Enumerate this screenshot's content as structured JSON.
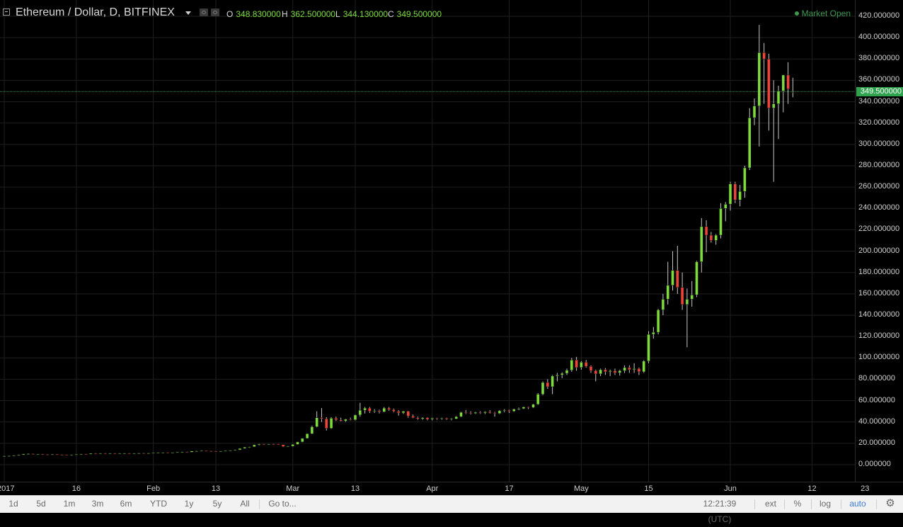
{
  "header": {
    "symbol_title": "Ethereum / Dollar, D, BITFINEX",
    "ohlc": [
      {
        "key": "O",
        "value": "348.830000"
      },
      {
        "key": "H",
        "value": "362.500000"
      },
      {
        "key": "L",
        "value": "344.130000"
      },
      {
        "key": "C",
        "value": "349.500000"
      }
    ],
    "market_status": "Market Open"
  },
  "last_price_label": "349.500000",
  "colors": {
    "up": "#7ddb3c",
    "down": "#f0433b",
    "grid": "#1f1f1f",
    "last_price": "#2fa34e"
  },
  "price_axis": {
    "ticks": [
      "420.000000",
      "400.000000",
      "380.000000",
      "360.000000",
      "340.000000",
      "320.000000",
      "300.000000",
      "280.000000",
      "260.000000",
      "240.000000",
      "220.000000",
      "200.000000",
      "180.000000",
      "160.000000",
      "140.000000",
      "120.000000",
      "100.000000",
      "80.000000",
      "60.000000",
      "40.000000",
      "20.000000",
      "0.000000"
    ]
  },
  "time_axis": {
    "labels": [
      "2017",
      "16",
      "Feb",
      "13",
      "Mar",
      "13",
      "Apr",
      "17",
      "May",
      "15",
      "Jun",
      "12",
      "23"
    ]
  },
  "toolbar": {
    "ranges": [
      "1d",
      "5d",
      "1m",
      "3m",
      "6m",
      "YTD",
      "1y",
      "5y",
      "All"
    ],
    "goto_label": "Go to...",
    "clock": "12:21:39 (UTC)",
    "ext_label": "ext",
    "percent_label": "%",
    "log_label": "log",
    "auto_label": "auto"
  },
  "chart_data": {
    "type": "candlestick",
    "ylim": [
      0,
      420
    ],
    "series": [
      {
        "o": 8.1,
        "h": 8.4,
        "l": 7.9,
        "c": 8.2
      },
      {
        "o": 8.2,
        "h": 8.5,
        "l": 8.0,
        "c": 8.3
      },
      {
        "o": 8.3,
        "h": 8.8,
        "l": 8.1,
        "c": 8.6
      },
      {
        "o": 8.6,
        "h": 9.4,
        "l": 8.4,
        "c": 9.2
      },
      {
        "o": 9.2,
        "h": 10.2,
        "l": 9.0,
        "c": 10.0
      },
      {
        "o": 10.0,
        "h": 10.7,
        "l": 9.6,
        "c": 10.2
      },
      {
        "o": 10.2,
        "h": 10.4,
        "l": 9.5,
        "c": 9.7
      },
      {
        "o": 9.7,
        "h": 10.0,
        "l": 9.5,
        "c": 9.8
      },
      {
        "o": 9.8,
        "h": 10.0,
        "l": 9.5,
        "c": 9.6
      },
      {
        "o": 9.6,
        "h": 9.8,
        "l": 9.4,
        "c": 9.5
      },
      {
        "o": 9.5,
        "h": 9.8,
        "l": 9.4,
        "c": 9.7
      },
      {
        "o": 9.7,
        "h": 9.9,
        "l": 9.4,
        "c": 9.5
      },
      {
        "o": 9.5,
        "h": 9.7,
        "l": 9.3,
        "c": 9.4
      },
      {
        "o": 9.4,
        "h": 9.6,
        "l": 9.2,
        "c": 9.3
      },
      {
        "o": 9.3,
        "h": 9.5,
        "l": 9.1,
        "c": 9.4
      },
      {
        "o": 9.4,
        "h": 9.8,
        "l": 9.3,
        "c": 9.7
      },
      {
        "o": 9.7,
        "h": 10.1,
        "l": 9.5,
        "c": 9.9
      },
      {
        "o": 9.9,
        "h": 10.1,
        "l": 9.6,
        "c": 9.8
      },
      {
        "o": 9.8,
        "h": 10.7,
        "l": 9.7,
        "c": 10.6
      },
      {
        "o": 10.6,
        "h": 10.9,
        "l": 10.3,
        "c": 10.5
      },
      {
        "o": 10.5,
        "h": 10.8,
        "l": 10.4,
        "c": 10.7
      },
      {
        "o": 10.7,
        "h": 10.9,
        "l": 10.5,
        "c": 10.6
      },
      {
        "o": 10.6,
        "h": 10.8,
        "l": 10.4,
        "c": 10.7
      },
      {
        "o": 10.7,
        "h": 10.9,
        "l": 10.5,
        "c": 10.6
      },
      {
        "o": 10.6,
        "h": 10.8,
        "l": 10.4,
        "c": 10.7
      },
      {
        "o": 10.7,
        "h": 10.9,
        "l": 10.5,
        "c": 10.8
      },
      {
        "o": 10.8,
        "h": 11.0,
        "l": 10.6,
        "c": 10.7
      },
      {
        "o": 10.7,
        "h": 10.9,
        "l": 10.5,
        "c": 10.8
      },
      {
        "o": 10.8,
        "h": 11.0,
        "l": 10.6,
        "c": 10.9
      },
      {
        "o": 10.9,
        "h": 11.1,
        "l": 10.7,
        "c": 10.8
      },
      {
        "o": 10.8,
        "h": 11.0,
        "l": 10.6,
        "c": 10.9
      },
      {
        "o": 10.9,
        "h": 11.3,
        "l": 10.8,
        "c": 11.2
      },
      {
        "o": 11.2,
        "h": 11.5,
        "l": 11.0,
        "c": 11.3
      },
      {
        "o": 11.3,
        "h": 11.6,
        "l": 11.1,
        "c": 11.4
      },
      {
        "o": 11.4,
        "h": 11.6,
        "l": 11.2,
        "c": 11.3
      },
      {
        "o": 11.3,
        "h": 11.5,
        "l": 11.1,
        "c": 11.4
      },
      {
        "o": 11.4,
        "h": 11.9,
        "l": 11.3,
        "c": 11.8
      },
      {
        "o": 11.8,
        "h": 12.1,
        "l": 11.6,
        "c": 11.9
      },
      {
        "o": 11.9,
        "h": 12.0,
        "l": 11.6,
        "c": 11.7
      },
      {
        "o": 11.7,
        "h": 12.9,
        "l": 11.6,
        "c": 12.8
      },
      {
        "o": 12.8,
        "h": 13.1,
        "l": 12.5,
        "c": 12.9
      },
      {
        "o": 12.9,
        "h": 13.2,
        "l": 12.6,
        "c": 13.1
      },
      {
        "o": 13.1,
        "h": 13.3,
        "l": 12.8,
        "c": 12.9
      },
      {
        "o": 12.9,
        "h": 13.1,
        "l": 12.6,
        "c": 12.8
      },
      {
        "o": 12.8,
        "h": 13.0,
        "l": 12.5,
        "c": 12.7
      },
      {
        "o": 12.7,
        "h": 12.9,
        "l": 12.4,
        "c": 12.8
      },
      {
        "o": 12.8,
        "h": 13.2,
        "l": 12.6,
        "c": 13.1
      },
      {
        "o": 13.1,
        "h": 13.6,
        "l": 12.9,
        "c": 13.5
      },
      {
        "o": 13.5,
        "h": 14.1,
        "l": 13.3,
        "c": 13.9
      },
      {
        "o": 13.9,
        "h": 15.4,
        "l": 13.7,
        "c": 15.2
      },
      {
        "o": 15.2,
        "h": 16.6,
        "l": 15.0,
        "c": 16.4
      },
      {
        "o": 16.4,
        "h": 17.0,
        "l": 15.8,
        "c": 16.8
      },
      {
        "o": 16.8,
        "h": 18.8,
        "l": 16.6,
        "c": 18.6
      },
      {
        "o": 18.6,
        "h": 19.6,
        "l": 18.0,
        "c": 19.3
      },
      {
        "o": 19.3,
        "h": 19.6,
        "l": 18.6,
        "c": 19.0
      },
      {
        "o": 19.0,
        "h": 19.4,
        "l": 18.6,
        "c": 19.2
      },
      {
        "o": 19.2,
        "h": 19.5,
        "l": 18.8,
        "c": 19.1
      },
      {
        "o": 19.1,
        "h": 19.4,
        "l": 18.4,
        "c": 18.7
      },
      {
        "o": 18.7,
        "h": 18.9,
        "l": 16.5,
        "c": 17.0
      },
      {
        "o": 17.0,
        "h": 17.6,
        "l": 16.6,
        "c": 17.3
      },
      {
        "o": 17.3,
        "h": 19.2,
        "l": 17.0,
        "c": 19.0
      },
      {
        "o": 19.0,
        "h": 21.5,
        "l": 18.8,
        "c": 21.3
      },
      {
        "o": 21.3,
        "h": 24.8,
        "l": 21.0,
        "c": 24.6
      },
      {
        "o": 24.6,
        "h": 29.2,
        "l": 24.4,
        "c": 29.0
      },
      {
        "o": 29.0,
        "h": 36.5,
        "l": 28.5,
        "c": 35.5
      },
      {
        "o": 35.5,
        "h": 50.0,
        "l": 35.0,
        "c": 44.0
      },
      {
        "o": 44.0,
        "h": 53.0,
        "l": 40.0,
        "c": 43.0
      },
      {
        "o": 43.0,
        "h": 44.5,
        "l": 32.0,
        "c": 34.0
      },
      {
        "o": 34.0,
        "h": 44.5,
        "l": 33.5,
        "c": 43.5
      },
      {
        "o": 43.5,
        "h": 45.0,
        "l": 41.0,
        "c": 42.0
      },
      {
        "o": 42.0,
        "h": 44.0,
        "l": 40.5,
        "c": 41.0
      },
      {
        "o": 41.0,
        "h": 43.0,
        "l": 40.0,
        "c": 42.5
      },
      {
        "o": 42.5,
        "h": 44.0,
        "l": 41.5,
        "c": 42.0
      },
      {
        "o": 42.0,
        "h": 47.0,
        "l": 41.5,
        "c": 46.5
      },
      {
        "o": 46.5,
        "h": 58.0,
        "l": 45.0,
        "c": 51.0
      },
      {
        "o": 51.0,
        "h": 54.0,
        "l": 48.0,
        "c": 53.0
      },
      {
        "o": 53.0,
        "h": 54.0,
        "l": 48.5,
        "c": 50.0
      },
      {
        "o": 50.0,
        "h": 52.0,
        "l": 48.5,
        "c": 50.5
      },
      {
        "o": 50.5,
        "h": 51.5,
        "l": 48.0,
        "c": 49.5
      },
      {
        "o": 49.5,
        "h": 54.0,
        "l": 49.0,
        "c": 53.0
      },
      {
        "o": 53.0,
        "h": 54.0,
        "l": 50.5,
        "c": 51.5
      },
      {
        "o": 51.5,
        "h": 52.5,
        "l": 49.0,
        "c": 50.0
      },
      {
        "o": 50.0,
        "h": 51.0,
        "l": 46.0,
        "c": 48.5
      },
      {
        "o": 48.5,
        "h": 50.5,
        "l": 47.5,
        "c": 50.0
      },
      {
        "o": 50.0,
        "h": 50.5,
        "l": 44.0,
        "c": 45.5
      },
      {
        "o": 45.5,
        "h": 47.0,
        "l": 43.5,
        "c": 44.0
      },
      {
        "o": 44.0,
        "h": 45.0,
        "l": 42.0,
        "c": 43.0
      },
      {
        "o": 43.0,
        "h": 44.5,
        "l": 42.0,
        "c": 44.0
      },
      {
        "o": 44.0,
        "h": 44.5,
        "l": 41.5,
        "c": 42.5
      },
      {
        "o": 42.5,
        "h": 44.0,
        "l": 41.5,
        "c": 43.5
      },
      {
        "o": 43.5,
        "h": 44.0,
        "l": 42.0,
        "c": 43.0
      },
      {
        "o": 43.0,
        "h": 44.0,
        "l": 42.0,
        "c": 43.5
      },
      {
        "o": 43.5,
        "h": 44.0,
        "l": 42.0,
        "c": 42.5
      },
      {
        "o": 42.5,
        "h": 43.5,
        "l": 41.5,
        "c": 43.0
      },
      {
        "o": 43.0,
        "h": 45.5,
        "l": 42.5,
        "c": 45.0
      },
      {
        "o": 45.0,
        "h": 49.5,
        "l": 44.5,
        "c": 49.0
      },
      {
        "o": 49.0,
        "h": 51.0,
        "l": 47.5,
        "c": 48.5
      },
      {
        "o": 48.5,
        "h": 50.0,
        "l": 47.0,
        "c": 48.0
      },
      {
        "o": 48.0,
        "h": 49.5,
        "l": 47.5,
        "c": 49.0
      },
      {
        "o": 49.0,
        "h": 50.0,
        "l": 47.5,
        "c": 48.5
      },
      {
        "o": 48.5,
        "h": 50.0,
        "l": 47.5,
        "c": 49.5
      },
      {
        "o": 49.5,
        "h": 51.0,
        "l": 48.0,
        "c": 48.5
      },
      {
        "o": 48.5,
        "h": 49.5,
        "l": 45.0,
        "c": 48.0
      },
      {
        "o": 48.0,
        "h": 51.0,
        "l": 47.5,
        "c": 50.5
      },
      {
        "o": 50.5,
        "h": 52.0,
        "l": 49.0,
        "c": 51.0
      },
      {
        "o": 51.0,
        "h": 51.5,
        "l": 48.5,
        "c": 50.0
      },
      {
        "o": 50.0,
        "h": 52.5,
        "l": 49.5,
        "c": 52.0
      },
      {
        "o": 52.0,
        "h": 53.5,
        "l": 51.0,
        "c": 52.5
      },
      {
        "o": 52.5,
        "h": 54.5,
        "l": 52.0,
        "c": 54.0
      },
      {
        "o": 54.0,
        "h": 54.5,
        "l": 52.0,
        "c": 53.5
      },
      {
        "o": 53.5,
        "h": 57.0,
        "l": 53.0,
        "c": 56.5
      },
      {
        "o": 56.5,
        "h": 67.0,
        "l": 56.0,
        "c": 66.0
      },
      {
        "o": 66.0,
        "h": 78.0,
        "l": 65.0,
        "c": 77.0
      },
      {
        "o": 77.0,
        "h": 80.0,
        "l": 71.0,
        "c": 73.0
      },
      {
        "o": 73.0,
        "h": 84.0,
        "l": 66.0,
        "c": 83.0
      },
      {
        "o": 83.0,
        "h": 86.0,
        "l": 78.0,
        "c": 84.0
      },
      {
        "o": 84.0,
        "h": 86.5,
        "l": 81.0,
        "c": 85.5
      },
      {
        "o": 85.5,
        "h": 90.0,
        "l": 84.0,
        "c": 88.5
      },
      {
        "o": 88.5,
        "h": 100.0,
        "l": 87.0,
        "c": 98.0
      },
      {
        "o": 98.0,
        "h": 101.0,
        "l": 88.0,
        "c": 91.0
      },
      {
        "o": 91.0,
        "h": 97.0,
        "l": 89.0,
        "c": 96.0
      },
      {
        "o": 96.0,
        "h": 98.0,
        "l": 91.0,
        "c": 92.0
      },
      {
        "o": 92.0,
        "h": 93.0,
        "l": 86.0,
        "c": 88.0
      },
      {
        "o": 88.0,
        "h": 89.0,
        "l": 78.0,
        "c": 85.0
      },
      {
        "o": 85.0,
        "h": 90.0,
        "l": 83.0,
        "c": 89.0
      },
      {
        "o": 89.0,
        "h": 90.5,
        "l": 84.0,
        "c": 87.0
      },
      {
        "o": 87.0,
        "h": 89.0,
        "l": 83.0,
        "c": 88.0
      },
      {
        "o": 88.0,
        "h": 90.0,
        "l": 84.0,
        "c": 86.0
      },
      {
        "o": 86.0,
        "h": 89.0,
        "l": 83.5,
        "c": 88.0
      },
      {
        "o": 88.0,
        "h": 93.0,
        "l": 86.0,
        "c": 91.0
      },
      {
        "o": 91.0,
        "h": 93.0,
        "l": 86.0,
        "c": 89.0
      },
      {
        "o": 89.0,
        "h": 95.0,
        "l": 86.0,
        "c": 90.0
      },
      {
        "o": 90.0,
        "h": 91.0,
        "l": 84.0,
        "c": 87.0
      },
      {
        "o": 87.0,
        "h": 98.0,
        "l": 86.0,
        "c": 97.0
      },
      {
        "o": 97.0,
        "h": 125.0,
        "l": 95.0,
        "c": 122.0
      },
      {
        "o": 122.0,
        "h": 129.0,
        "l": 118.0,
        "c": 124.0
      },
      {
        "o": 124.0,
        "h": 146.0,
        "l": 122.0,
        "c": 145.0
      },
      {
        "o": 145.0,
        "h": 160.0,
        "l": 140.0,
        "c": 155.0
      },
      {
        "o": 155.0,
        "h": 190.0,
        "l": 150.0,
        "c": 168.0
      },
      {
        "o": 168.0,
        "h": 200.0,
        "l": 163.0,
        "c": 182.0
      },
      {
        "o": 182.0,
        "h": 205.0,
        "l": 160.0,
        "c": 166.0
      },
      {
        "o": 166.0,
        "h": 180.0,
        "l": 145.0,
        "c": 150.0
      },
      {
        "o": 150.0,
        "h": 165.0,
        "l": 110.0,
        "c": 155.0
      },
      {
        "o": 155.0,
        "h": 172.0,
        "l": 148.0,
        "c": 159.0
      },
      {
        "o": 159.0,
        "h": 191.0,
        "l": 157.0,
        "c": 190.0
      },
      {
        "o": 190.0,
        "h": 231.0,
        "l": 180.0,
        "c": 223.0
      },
      {
        "o": 223.0,
        "h": 229.0,
        "l": 199.0,
        "c": 215.0
      },
      {
        "o": 215.0,
        "h": 218.0,
        "l": 208.0,
        "c": 210.0
      },
      {
        "o": 210.0,
        "h": 216.0,
        "l": 206.0,
        "c": 215.0
      },
      {
        "o": 215.0,
        "h": 245.0,
        "l": 212.0,
        "c": 240.0
      },
      {
        "o": 240.0,
        "h": 246.0,
        "l": 228.0,
        "c": 244.0
      },
      {
        "o": 244.0,
        "h": 265.0,
        "l": 238.0,
        "c": 263.0
      },
      {
        "o": 263.0,
        "h": 265.0,
        "l": 245.0,
        "c": 248.0
      },
      {
        "o": 248.0,
        "h": 262.0,
        "l": 242.0,
        "c": 256.0
      },
      {
        "o": 256.0,
        "h": 280.0,
        "l": 250.0,
        "c": 278.0
      },
      {
        "o": 278.0,
        "h": 334.0,
        "l": 276.0,
        "c": 325.0
      },
      {
        "o": 325.0,
        "h": 343.0,
        "l": 318.0,
        "c": 336.0
      },
      {
        "o": 336.0,
        "h": 412.0,
        "l": 298.0,
        "c": 386.0
      },
      {
        "o": 386.0,
        "h": 395.0,
        "l": 338.0,
        "c": 380.0
      },
      {
        "o": 380.0,
        "h": 385.0,
        "l": 313.0,
        "c": 334.0
      },
      {
        "o": 334.0,
        "h": 360.0,
        "l": 265.0,
        "c": 338.0
      },
      {
        "o": 338.0,
        "h": 355.0,
        "l": 305.0,
        "c": 350.0
      },
      {
        "o": 350.0,
        "h": 365.0,
        "l": 330.0,
        "c": 365.0
      },
      {
        "o": 365.0,
        "h": 377.0,
        "l": 338.0,
        "c": 352.0
      },
      {
        "o": 348.83,
        "h": 362.5,
        "l": 344.13,
        "c": 349.5
      }
    ]
  }
}
